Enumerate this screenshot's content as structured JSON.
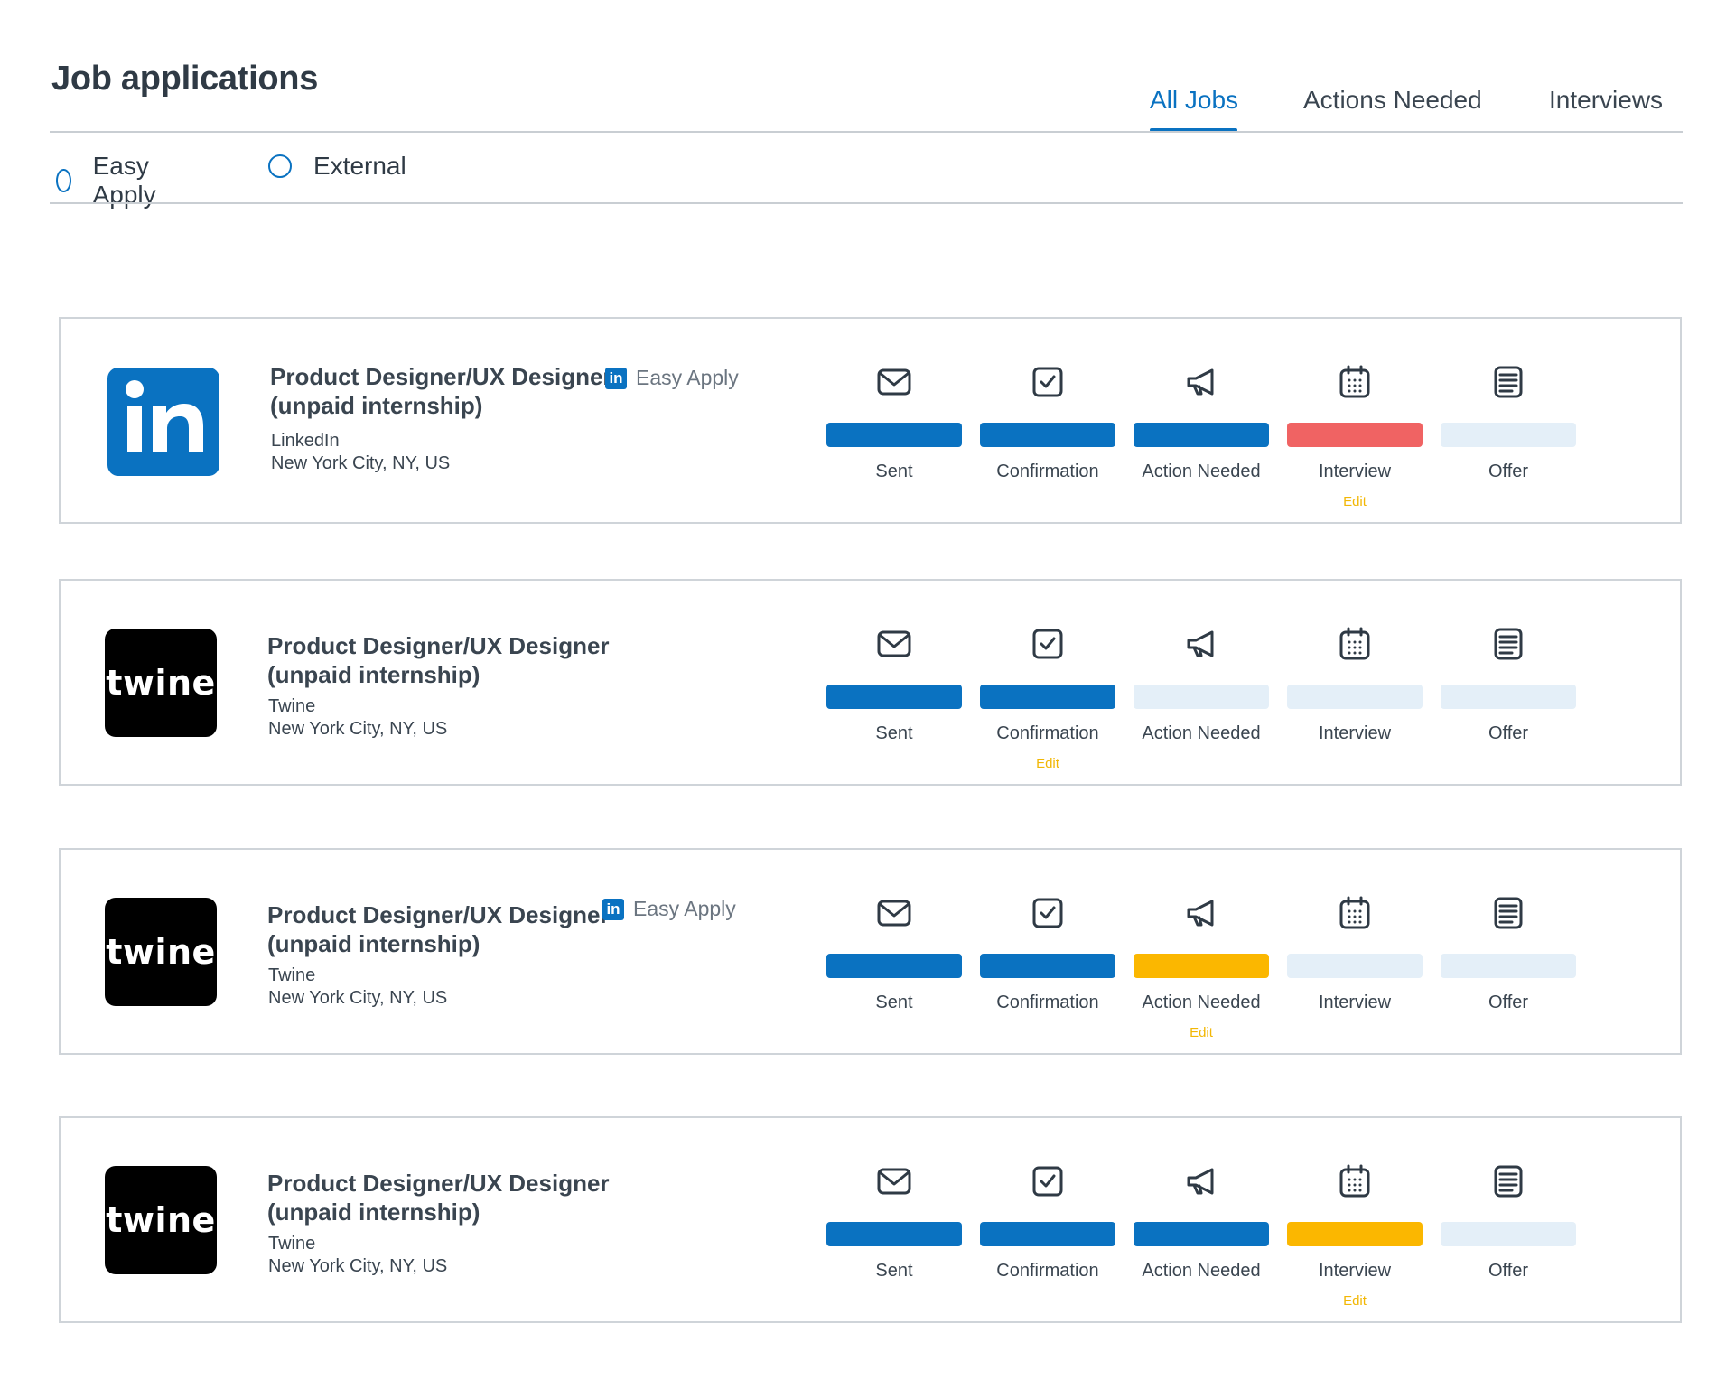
{
  "header": {
    "title": "Job applications"
  },
  "tabs": [
    {
      "label": "All Jobs",
      "active": true
    },
    {
      "label": "Actions Needed",
      "active": false
    },
    {
      "label": "Interviews",
      "active": false
    }
  ],
  "filters": [
    {
      "label": "Easy Apply",
      "checked": false
    },
    {
      "label": "External",
      "checked": false
    }
  ],
  "stage_icons": [
    "mail-icon",
    "check-square-icon",
    "megaphone-icon",
    "calendar-icon",
    "document-icon"
  ],
  "status_colors": {
    "completed": "#0a72c1",
    "attention": "#f06363",
    "warning": "#fbb700",
    "pending": "#e4eff8",
    "edit_link": "#f2b705"
  },
  "applications": [
    {
      "logo": "linkedin",
      "logo_text": "in",
      "title_line1": "Product Designer/UX Designer",
      "title_line2": "(unpaid internship)",
      "easy_apply": true,
      "badge_icon_text": "in",
      "badge_text": "Easy Apply",
      "company": "LinkedIn",
      "location": "New York City, NY, US",
      "edit_label": "Edit",
      "edit_stage": 3,
      "stages": [
        {
          "label": "Sent",
          "status": "completed"
        },
        {
          "label": "Confirmation",
          "status": "completed"
        },
        {
          "label": "Action Needed",
          "status": "completed"
        },
        {
          "label": "Interview",
          "status": "attention"
        },
        {
          "label": "Offer",
          "status": "pending"
        }
      ]
    },
    {
      "logo": "twine",
      "logo_text": "twine",
      "title_line1": "Product Designer/UX Designer",
      "title_line2": "(unpaid internship)",
      "easy_apply": false,
      "badge_icon_text": "",
      "badge_text": "",
      "company": "Twine",
      "location": "New York City, NY, US",
      "edit_label": "Edit",
      "edit_stage": 1,
      "stages": [
        {
          "label": "Sent",
          "status": "completed"
        },
        {
          "label": "Confirmation",
          "status": "completed"
        },
        {
          "label": "Action Needed",
          "status": "pending"
        },
        {
          "label": "Interview",
          "status": "pending"
        },
        {
          "label": "Offer",
          "status": "pending"
        }
      ]
    },
    {
      "logo": "twine",
      "logo_text": "twine",
      "title_line1": "Product Designer/UX Designer",
      "title_line2": "(unpaid internship)",
      "easy_apply": true,
      "badge_icon_text": "in",
      "badge_text": "Easy Apply",
      "company": "Twine",
      "location": "New York City, NY, US",
      "edit_label": "Edit",
      "edit_stage": 2,
      "stages": [
        {
          "label": "Sent",
          "status": "completed"
        },
        {
          "label": "Confirmation",
          "status": "completed"
        },
        {
          "label": "Action Needed",
          "status": "warning"
        },
        {
          "label": "Interview",
          "status": "pending"
        },
        {
          "label": "Offer",
          "status": "pending"
        }
      ]
    },
    {
      "logo": "twine",
      "logo_text": "twine",
      "title_line1": "Product Designer/UX Designer",
      "title_line2": "(unpaid internship)",
      "easy_apply": false,
      "badge_icon_text": "",
      "badge_text": "",
      "company": "Twine",
      "location": "New York City, NY, US",
      "edit_label": "Edit",
      "edit_stage": 3,
      "stages": [
        {
          "label": "Sent",
          "status": "completed"
        },
        {
          "label": "Confirmation",
          "status": "completed"
        },
        {
          "label": "Action Needed",
          "status": "completed"
        },
        {
          "label": "Interview",
          "status": "warning"
        },
        {
          "label": "Offer",
          "status": "pending"
        }
      ]
    }
  ]
}
